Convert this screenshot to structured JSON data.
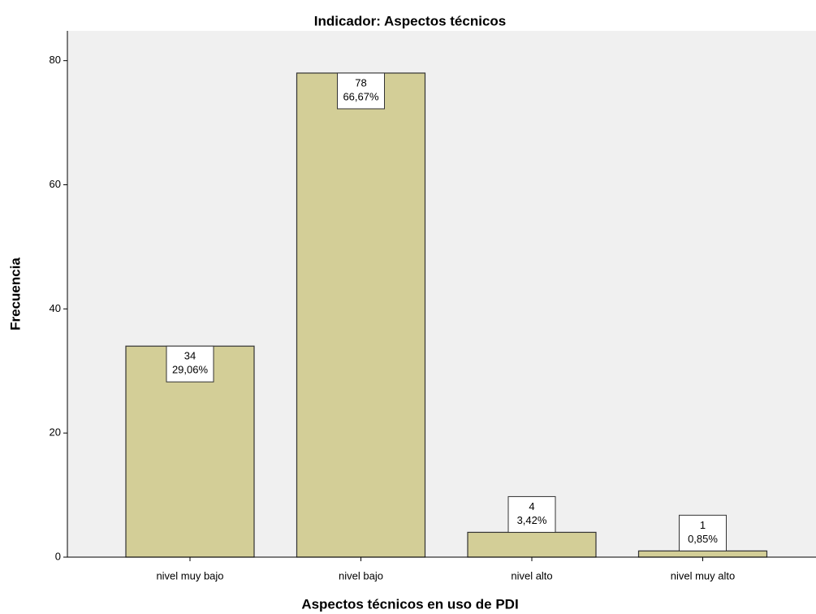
{
  "chart_data": {
    "type": "bar",
    "title": "Indicador: Aspectos técnicos",
    "x_label": "Aspectos técnicos en uso de PDI",
    "y_label": "Frecuencia",
    "categories": [
      "nivel muy bajo",
      "nivel bajo",
      "nivel alto",
      "nivel muy alto"
    ],
    "values": [
      34,
      78,
      4,
      1
    ],
    "percent_labels": [
      "29,06%",
      "66,67%",
      "3,42%",
      "0,85%"
    ],
    "color": "#d3ce97",
    "ylim": [
      0,
      84.8
    ],
    "yticks": [
      0,
      20,
      40,
      60,
      80
    ],
    "grid": false
  }
}
